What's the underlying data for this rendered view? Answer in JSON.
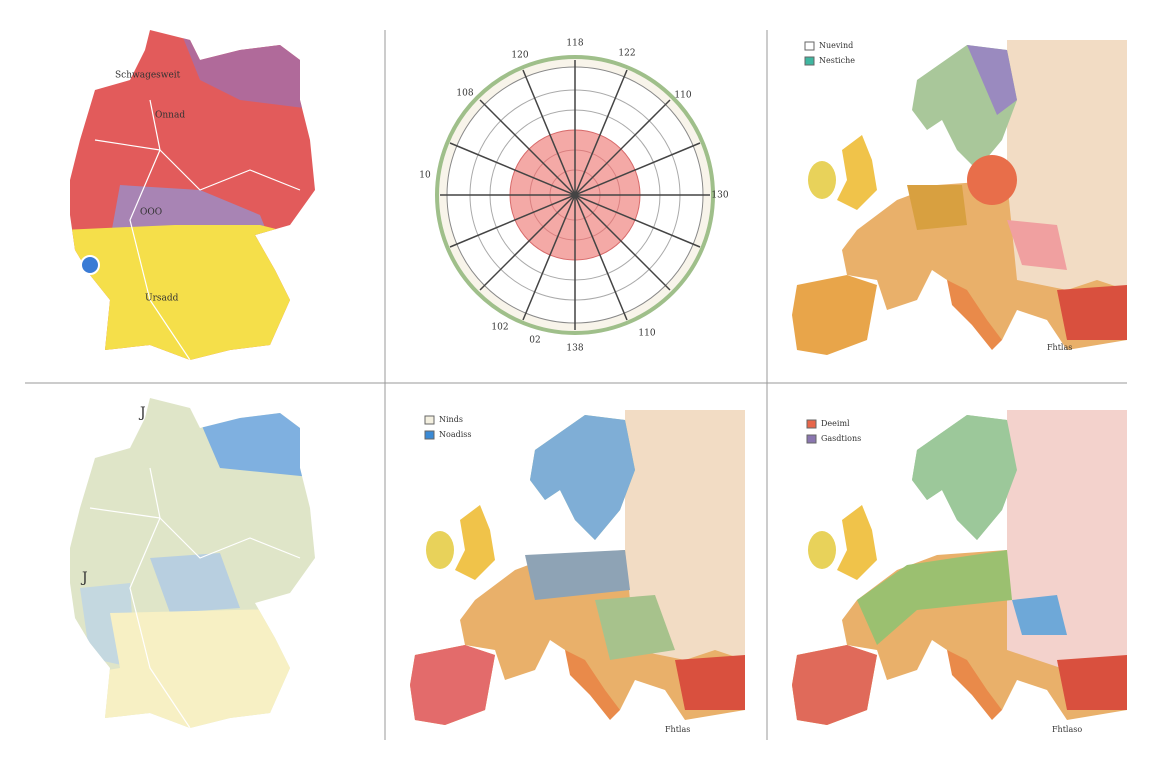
{
  "panels": [
    {
      "title": "Schwagesweit",
      "labels": [
        "Onnad",
        "OOO",
        "Ursadd"
      ]
    },
    {
      "ring_labels": [
        "118",
        "120",
        "122",
        "108",
        "110",
        "10",
        "130",
        "102",
        "138",
        "02",
        "110"
      ]
    },
    {
      "legend": [
        "Nuevind",
        "Nestiche"
      ],
      "footer": "Fhtlas"
    },
    {
      "labels": [
        "J",
        "J"
      ]
    },
    {
      "legend": [
        "Ninds",
        "Noadiss"
      ],
      "footer": "Fhtlas"
    },
    {
      "legend": [
        "Deeiml",
        "Gasdtions"
      ],
      "footer": "Fhtlaso"
    }
  ]
}
